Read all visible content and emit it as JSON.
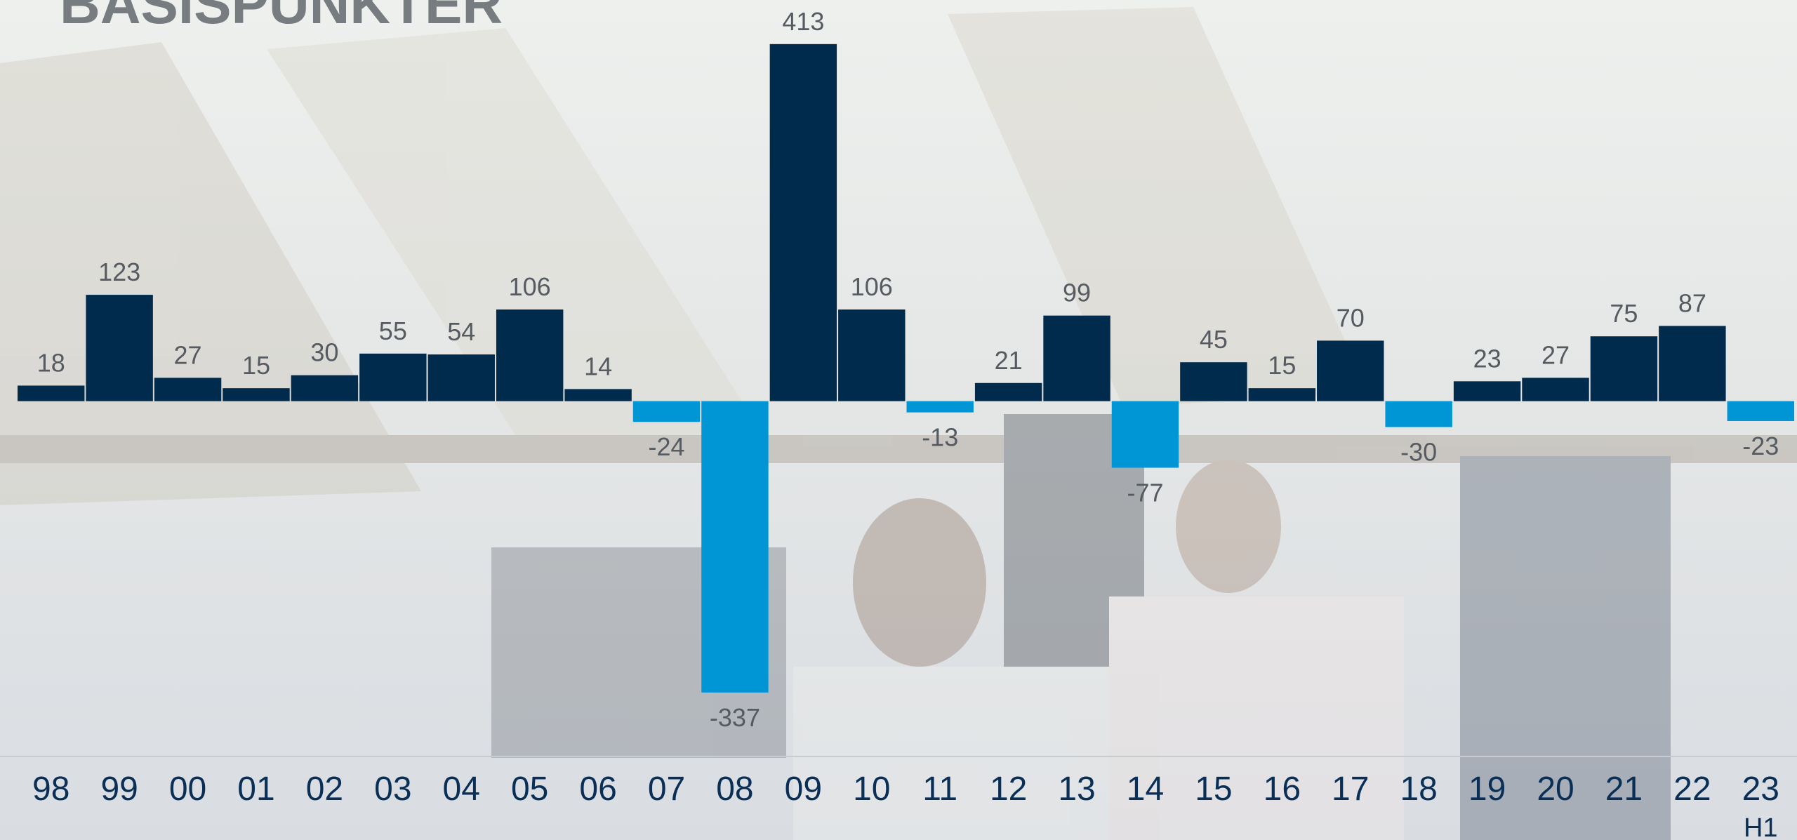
{
  "chart_data": {
    "type": "bar",
    "title": "BASISPUNKTER",
    "categories": [
      "98",
      "99",
      "00",
      "01",
      "02",
      "03",
      "04",
      "05",
      "06",
      "07",
      "08",
      "09",
      "10",
      "11",
      "12",
      "13",
      "14",
      "15",
      "16",
      "17",
      "18",
      "19",
      "20",
      "21",
      "22",
      "23 H1"
    ],
    "values": [
      18,
      123,
      27,
      15,
      30,
      55,
      54,
      106,
      14,
      -24,
      -337,
      413,
      106,
      -13,
      21,
      99,
      -77,
      45,
      15,
      70,
      -30,
      23,
      27,
      75,
      87,
      -23
    ],
    "color": "#002b4d",
    "negative_color": "#0096d6",
    "ylim": [
      -411,
      464
    ]
  }
}
